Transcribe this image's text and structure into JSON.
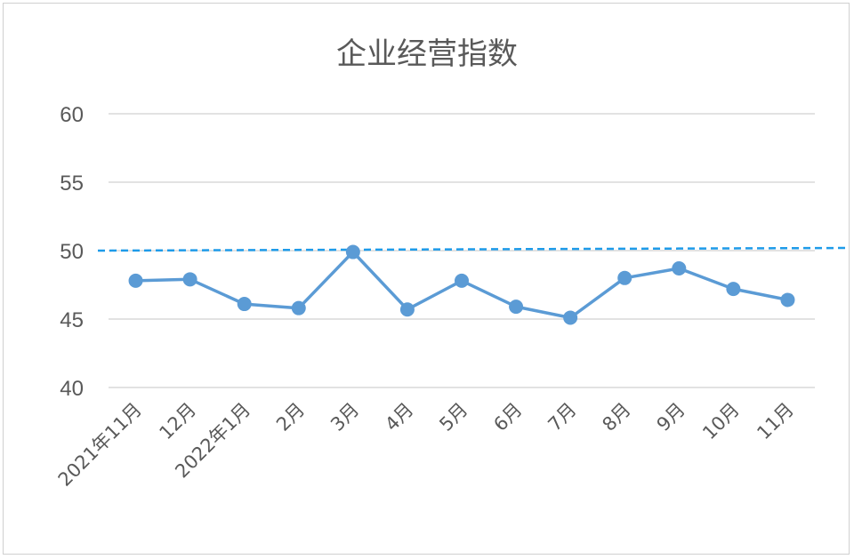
{
  "chart_data": {
    "type": "line",
    "title": "企业经营指数",
    "xlabel": "",
    "ylabel": "",
    "categories": [
      "2021年11月",
      "12月",
      "2022年1月",
      "2月",
      "3月",
      "4月",
      "5月",
      "6月",
      "7月",
      "8月",
      "9月",
      "10月",
      "11月"
    ],
    "series": [
      {
        "name": "",
        "values": [
          47.8,
          47.9,
          46.1,
          45.8,
          49.9,
          45.7,
          47.8,
          45.9,
          45.1,
          48.0,
          48.7,
          47.2,
          46.4
        ],
        "color": "#5b9bd5"
      }
    ],
    "reference_line": {
      "value": 50,
      "style": "dashed",
      "color": "#1e9be9"
    },
    "ylim": [
      40,
      60
    ],
    "yticks": [
      "40",
      "45",
      "50",
      "55",
      "60"
    ],
    "grid": true,
    "legend": "none"
  }
}
